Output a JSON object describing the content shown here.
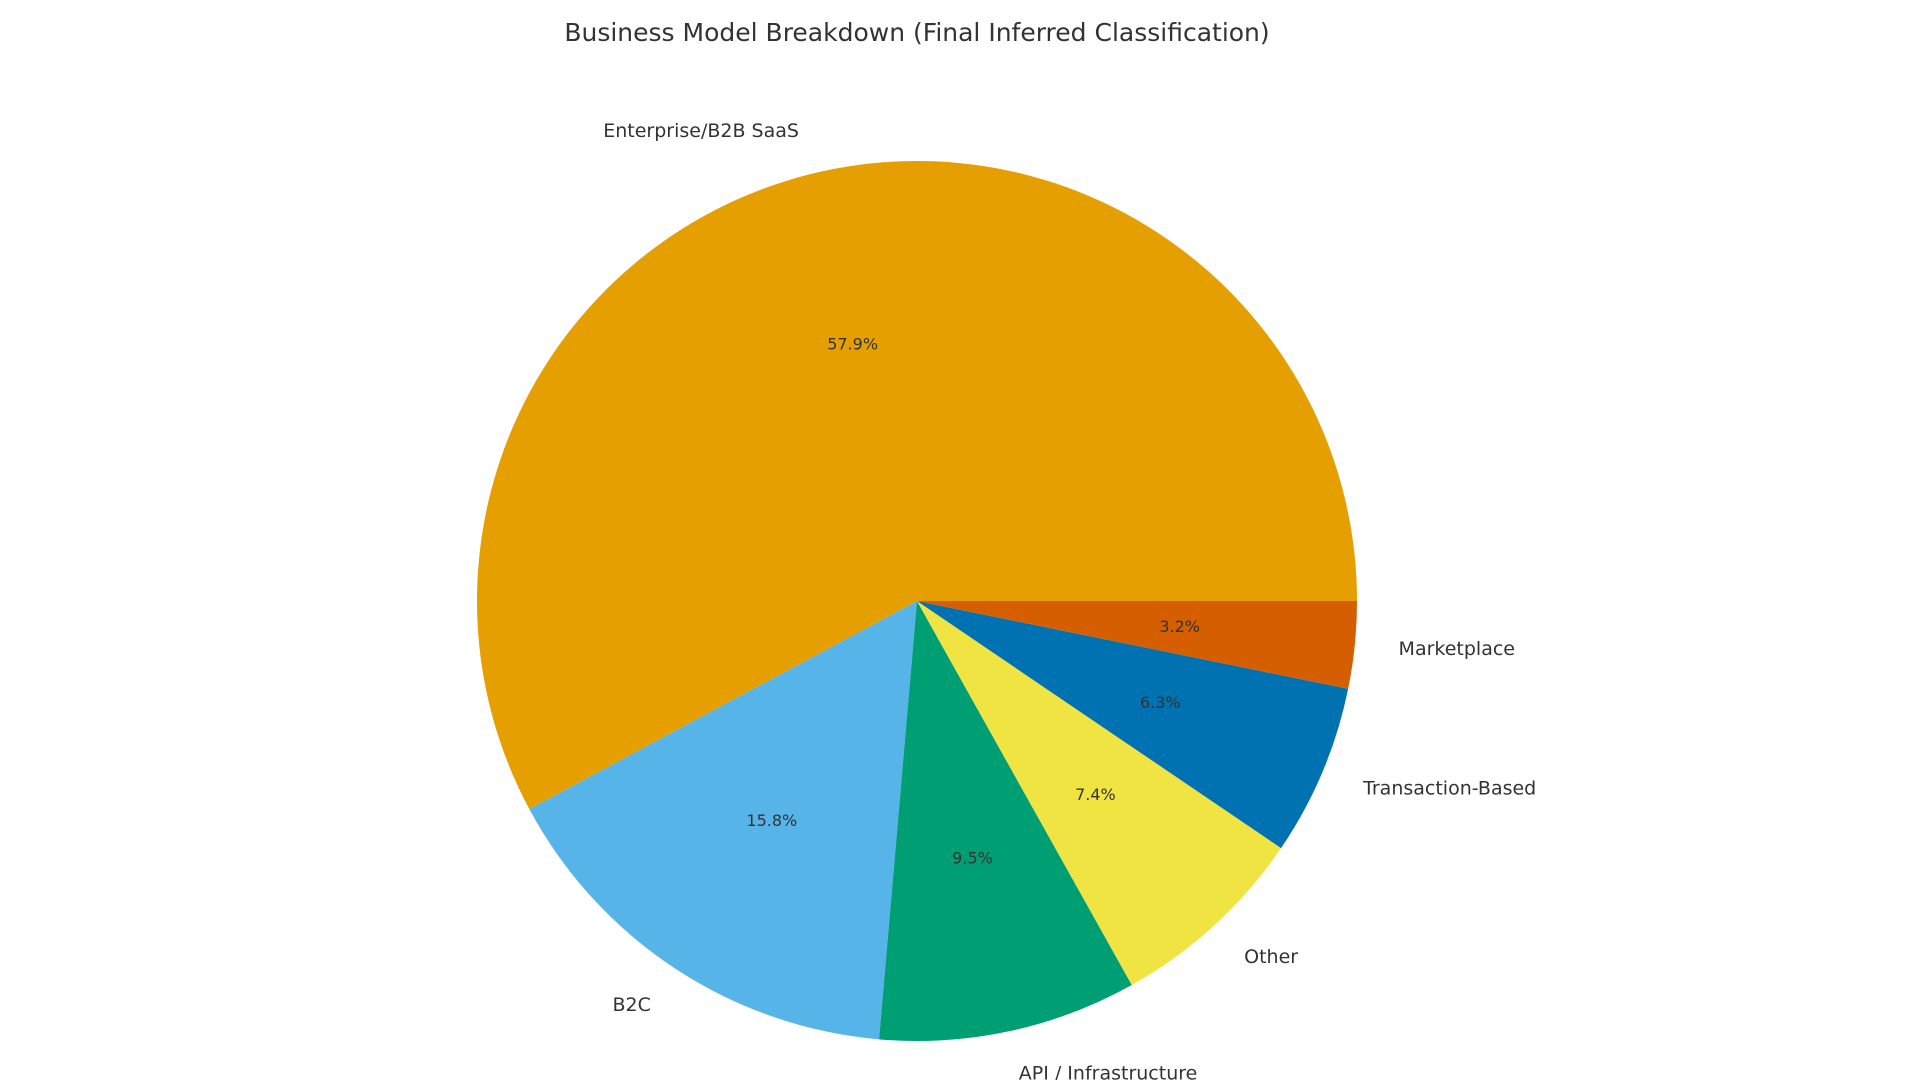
{
  "chart_data": {
    "type": "pie",
    "title": "Business Model Breakdown (Final Inferred Classification)",
    "categories": [
      "Enterprise/B2B SaaS",
      "B2C",
      "API / Infrastructure",
      "Other",
      "Transaction-Based",
      "Marketplace"
    ],
    "values": [
      57.9,
      15.8,
      9.5,
      7.4,
      6.3,
      3.2
    ],
    "value_labels": [
      "57.9%",
      "15.8%",
      "9.5%",
      "7.4%",
      "6.3%",
      "3.2%"
    ],
    "colors": [
      "#E69F00",
      "#56B4E9",
      "#009E73",
      "#F0E442",
      "#0072B2",
      "#D55E00"
    ]
  }
}
